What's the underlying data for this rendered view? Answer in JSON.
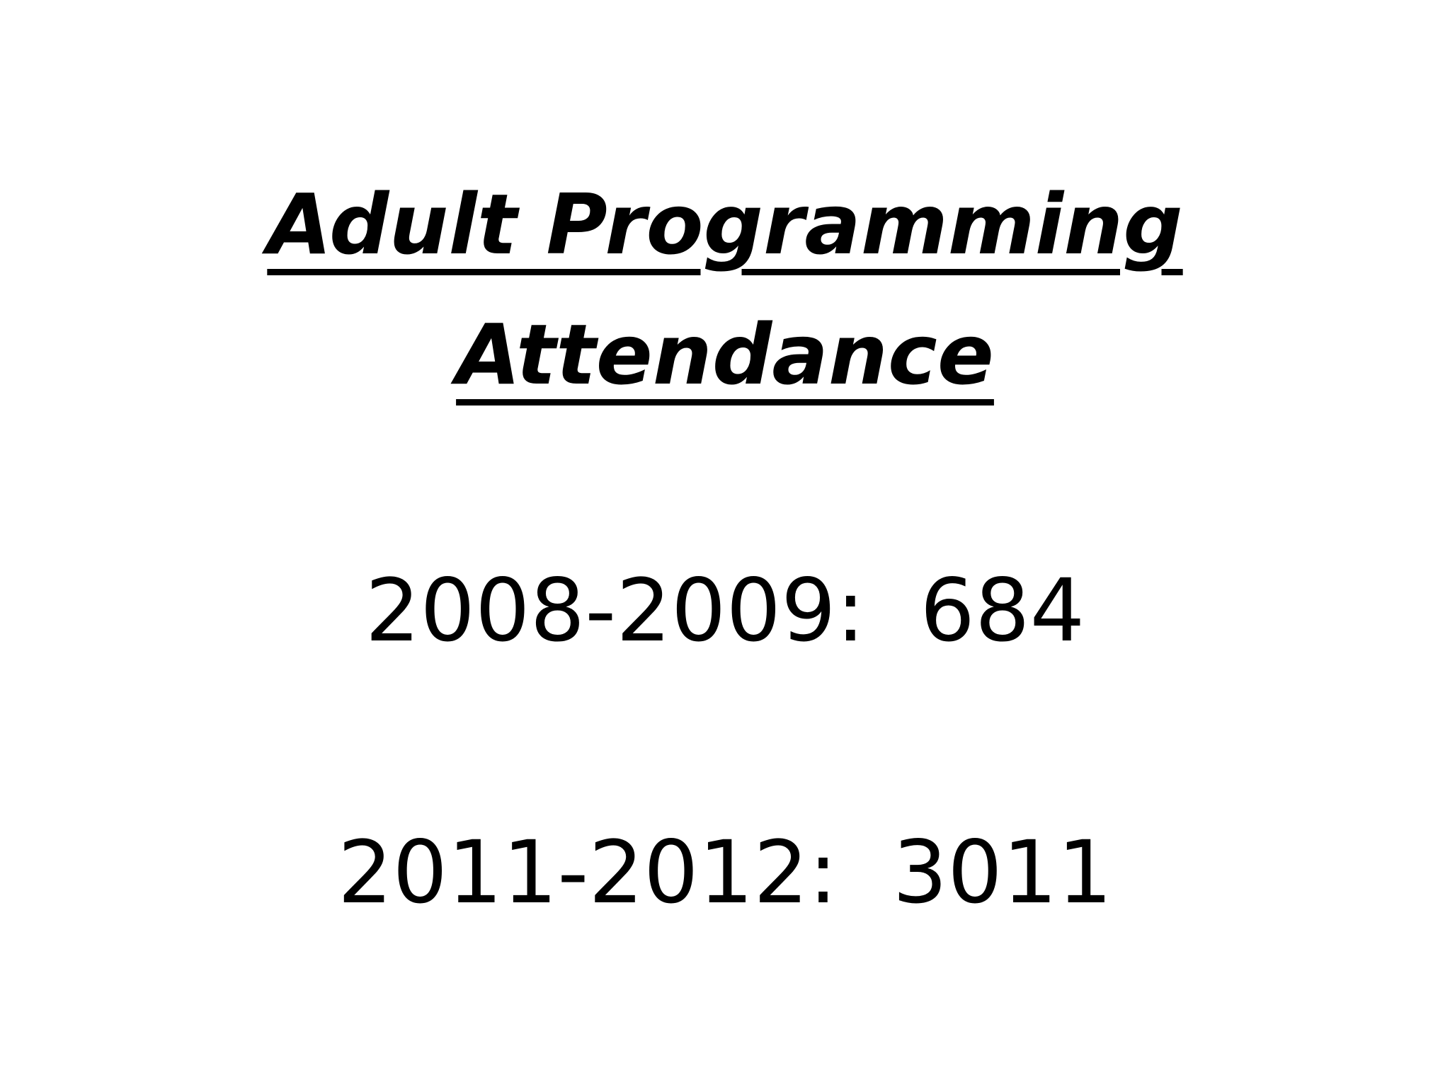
{
  "slide": {
    "title_line_1": "Adult Programming",
    "title_line_2": "Attendance",
    "stats": [
      {
        "period": "2008-2009:",
        "value": "684"
      },
      {
        "period": "2011-2012:",
        "value": "3011"
      }
    ],
    "colors": {
      "background": "#ffffff",
      "text": "#000000"
    }
  }
}
